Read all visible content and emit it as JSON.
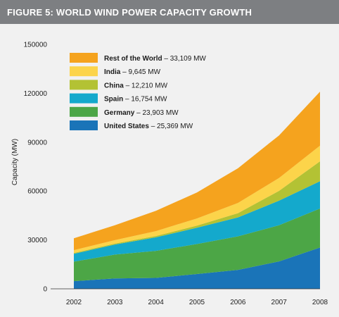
{
  "title": "FIGURE 5: WORLD WIND POWER CAPACITY GROWTH",
  "chart_data": {
    "type": "area",
    "stacked": true,
    "ylabel": "Capacity (MW)",
    "xlabel": "",
    "ylim": [
      0,
      150000
    ],
    "yticks": [
      0,
      30000,
      60000,
      90000,
      120000,
      150000
    ],
    "ytick_labels": [
      "0",
      "30000",
      "60000",
      "90000",
      "120000",
      "150000"
    ],
    "x": [
      "2002",
      "2003",
      "2004",
      "2005",
      "2006",
      "2007",
      "2008"
    ],
    "grid": false,
    "legend_position": "top-left",
    "series": [
      {
        "name": "United States",
        "label": "– 25,369 MW",
        "color": "#1a74b8",
        "values": [
          4700,
          6400,
          6700,
          9100,
          11600,
          16800,
          25369
        ]
      },
      {
        "name": "Germany",
        "label": "– 23,903 MW",
        "color": "#4ca646",
        "values": [
          12000,
          14600,
          16600,
          18400,
          20600,
          22200,
          23903
        ]
      },
      {
        "name": "Spain",
        "label": "– 16,754 MW",
        "color": "#14a9cc",
        "values": [
          4800,
          6200,
          8300,
          10000,
          11600,
          15100,
          16754
        ]
      },
      {
        "name": "China",
        "label": "– 12,210 MW",
        "color": "#b3c234",
        "values": [
          500,
          600,
          800,
          1300,
          2600,
          6000,
          12210
        ]
      },
      {
        "name": "India",
        "label": "– 9,645 MW",
        "color": "#fcd44a",
        "values": [
          1700,
          2100,
          3000,
          4400,
          6300,
          7900,
          9645
        ]
      },
      {
        "name": "Rest of the World",
        "label": "– 33,109 MW",
        "color": "#f5a31e",
        "values": [
          7300,
          9100,
          12500,
          15900,
          21300,
          26100,
          33109
        ]
      }
    ]
  }
}
